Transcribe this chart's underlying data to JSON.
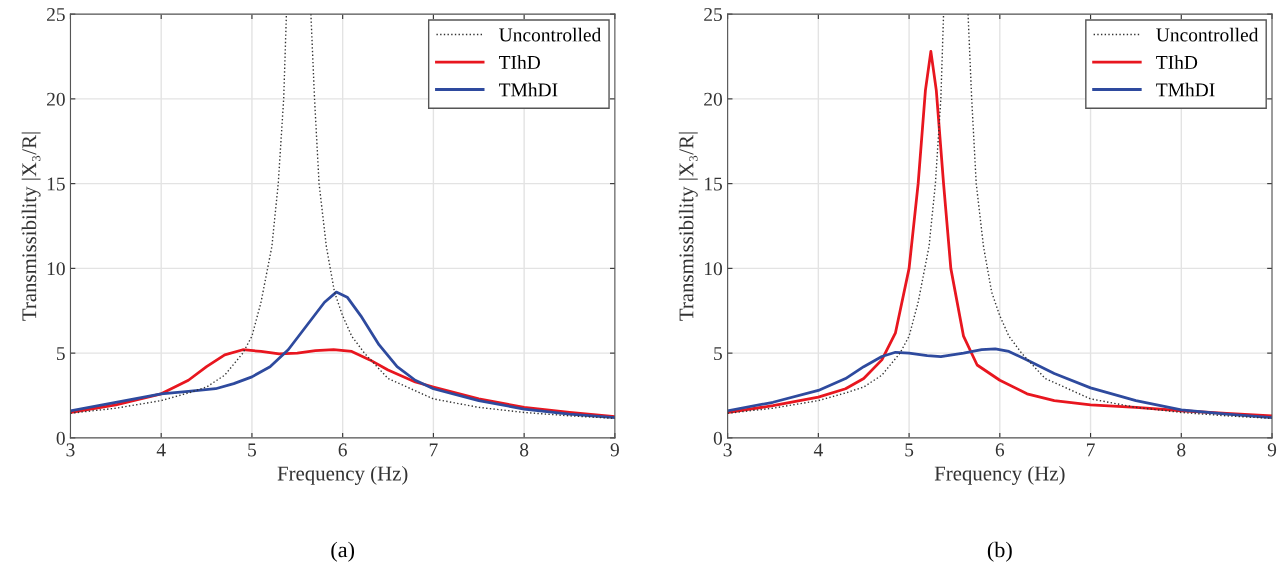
{
  "chart_data": [
    {
      "type": "line",
      "xlabel": "Frequency (Hz)",
      "ylabel": "Transmissibility |X₃/R|",
      "annotations": [
        "(a)"
      ],
      "xlim": [
        3,
        9
      ],
      "ylim": [
        0,
        25
      ],
      "xticks": [
        3,
        4,
        5,
        6,
        7,
        8,
        9
      ],
      "yticks": [
        0,
        5,
        10,
        15,
        20,
        25
      ],
      "grid": true,
      "legend": "top right",
      "marker": "none",
      "series": [
        {
          "name": "Uncontrolled",
          "color": "#333333",
          "line_style": "dotted",
          "x": [
            3,
            3.5,
            4,
            4.3,
            4.5,
            4.7,
            4.9,
            5.0,
            5.1,
            5.22,
            5.29,
            5.35,
            5.38,
            5.52,
            5.65,
            5.69,
            5.74,
            5.82,
            5.91,
            6.0,
            6.1,
            6.24,
            6.5,
            7,
            7.5,
            8,
            8.5,
            9
          ],
          "values": [
            1.45,
            1.75,
            2.2,
            2.65,
            3.0,
            3.7,
            5.0,
            6.0,
            8.0,
            11.3,
            15,
            20,
            25,
            null,
            25,
            20,
            15,
            11.3,
            8.6,
            7.2,
            6.0,
            5.0,
            3.5,
            2.3,
            1.8,
            1.5,
            1.3,
            1.15
          ]
        },
        {
          "name": "TIhD",
          "color": "#e8161f",
          "line_style": "solid",
          "x": [
            3,
            3.5,
            4,
            4.3,
            4.5,
            4.7,
            4.9,
            5.1,
            5.3,
            5.5,
            5.7,
            5.9,
            6.1,
            6.3,
            6.5,
            6.8,
            7,
            7.5,
            8,
            8.5,
            9
          ],
          "values": [
            1.5,
            1.95,
            2.6,
            3.4,
            4.2,
            4.9,
            5.2,
            5.1,
            4.95,
            5.0,
            5.15,
            5.2,
            5.1,
            4.6,
            4.0,
            3.3,
            3.0,
            2.3,
            1.8,
            1.5,
            1.25
          ]
        },
        {
          "name": "TMhDI",
          "color": "#2e4a9e",
          "line_style": "solid",
          "x": [
            3,
            3.5,
            4,
            4.3,
            4.6,
            4.8,
            5,
            5.2,
            5.4,
            5.6,
            5.8,
            5.93,
            6.05,
            6.2,
            6.4,
            6.6,
            6.8,
            7,
            7.5,
            8,
            8.5,
            9
          ],
          "values": [
            1.6,
            2.1,
            2.6,
            2.75,
            2.9,
            3.2,
            3.6,
            4.2,
            5.2,
            6.6,
            8.0,
            8.6,
            8.3,
            7.2,
            5.5,
            4.2,
            3.4,
            2.9,
            2.2,
            1.7,
            1.4,
            1.2
          ]
        }
      ]
    },
    {
      "type": "line",
      "xlabel": "Frequency (Hz)",
      "ylabel": "Transmissibility |X₃/R|",
      "annotations": [
        "(b)"
      ],
      "xlim": [
        3,
        9
      ],
      "ylim": [
        0,
        25
      ],
      "xticks": [
        3,
        4,
        5,
        6,
        7,
        8,
        9
      ],
      "yticks": [
        0,
        5,
        10,
        15,
        20,
        25
      ],
      "grid": true,
      "legend": "top right",
      "marker": "none",
      "series": [
        {
          "name": "Uncontrolled",
          "color": "#333333",
          "line_style": "dotted",
          "x": [
            3,
            3.5,
            4,
            4.3,
            4.5,
            4.7,
            4.9,
            5.0,
            5.1,
            5.22,
            5.29,
            5.35,
            5.38,
            5.52,
            5.65,
            5.69,
            5.74,
            5.82,
            5.91,
            6.0,
            6.1,
            6.24,
            6.5,
            7,
            7.5,
            8,
            8.5,
            9
          ],
          "values": [
            1.45,
            1.75,
            2.2,
            2.65,
            3.0,
            3.7,
            5.0,
            6.0,
            8.0,
            11.3,
            15,
            20,
            25,
            null,
            25,
            20,
            15,
            11.3,
            8.6,
            7.2,
            6.0,
            5.0,
            3.5,
            2.3,
            1.8,
            1.5,
            1.3,
            1.15
          ]
        },
        {
          "name": "TIhD",
          "color": "#e8161f",
          "line_style": "solid",
          "x": [
            3,
            3.5,
            4,
            4.3,
            4.5,
            4.7,
            4.85,
            5.0,
            5.1,
            5.18,
            5.24,
            5.3,
            5.38,
            5.46,
            5.6,
            5.75,
            6,
            6.3,
            6.6,
            7,
            7.5,
            8,
            8.5,
            9
          ],
          "values": [
            1.5,
            1.9,
            2.4,
            2.9,
            3.5,
            4.6,
            6.2,
            10,
            15,
            20.5,
            22.8,
            20.5,
            15,
            10,
            6,
            4.3,
            3.4,
            2.6,
            2.2,
            1.95,
            1.8,
            1.6,
            1.45,
            1.3
          ]
        },
        {
          "name": "TMhDI",
          "color": "#2e4a9e",
          "line_style": "solid",
          "x": [
            3,
            3.5,
            4,
            4.3,
            4.5,
            4.7,
            4.85,
            5.0,
            5.2,
            5.35,
            5.6,
            5.8,
            5.95,
            6.1,
            6.3,
            6.6,
            7,
            7.5,
            8,
            8.5,
            9
          ],
          "values": [
            1.6,
            2.1,
            2.8,
            3.5,
            4.2,
            4.8,
            5.05,
            5.0,
            4.85,
            4.8,
            5.0,
            5.2,
            5.25,
            5.1,
            4.6,
            3.8,
            2.95,
            2.2,
            1.65,
            1.4,
            1.2
          ]
        }
      ]
    }
  ]
}
